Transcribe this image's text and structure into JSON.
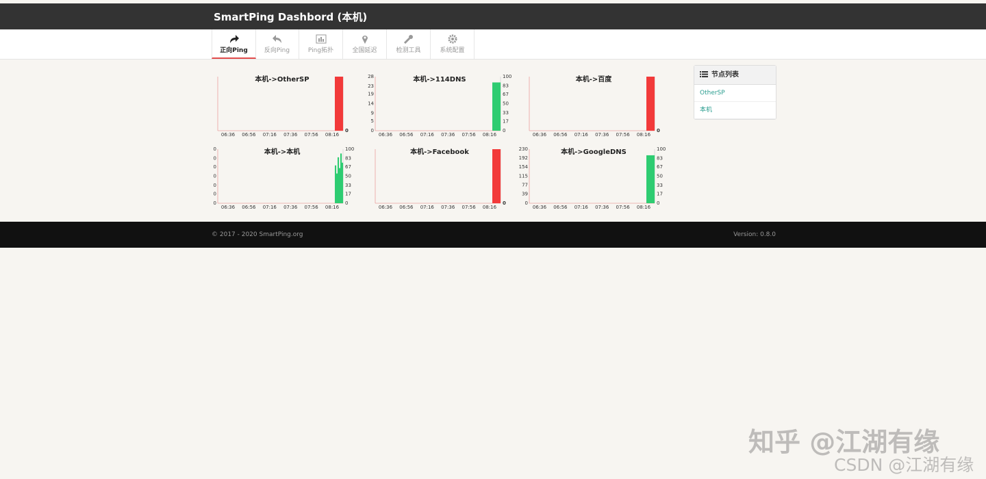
{
  "header": {
    "title": "SmartPing Dashbord (本机)"
  },
  "nav": {
    "items": [
      "正向Ping",
      "反向Ping",
      "Ping拓扑",
      "全国延迟",
      "检测工具",
      "系统配置"
    ],
    "active": 0
  },
  "charts": [
    {
      "title": "本机->OtherSP",
      "categories": [
        "06:36",
        "06:56",
        "07:16",
        "07:36",
        "07:56",
        "08:16"
      ],
      "y2lim": [
        0,
        100
      ],
      "y2ticks": [
        0
      ],
      "loss": {
        "color": "#f23a3a",
        "values": [
          100
        ]
      }
    },
    {
      "title": "本机->114DNS",
      "categories": [
        "06:36",
        "06:56",
        "07:16",
        "07:36",
        "07:56",
        "08:16"
      ],
      "ylim": [
        0,
        28
      ],
      "yticks": [
        0,
        5,
        9,
        14,
        19,
        23,
        28
      ],
      "y2lim": [
        0,
        100
      ],
      "y2ticks": [
        0,
        17,
        33,
        50,
        67,
        83,
        100
      ],
      "delay": {
        "color": "#2ecc71",
        "values": [
          25
        ]
      }
    },
    {
      "title": "本机->百度",
      "categories": [
        "06:36",
        "06:56",
        "07:16",
        "07:36",
        "07:56",
        "08:16"
      ],
      "y2lim": [
        0,
        100
      ],
      "y2ticks": [
        0
      ],
      "loss": {
        "color": "#f23a3a",
        "values": [
          100
        ]
      }
    },
    {
      "title": "本机->本机",
      "categories": [
        "06:36",
        "06:56",
        "07:16",
        "07:36",
        "07:56",
        "08:16"
      ],
      "ylim": [
        0,
        1
      ],
      "yticks": [
        {
          "value": 0,
          "label": "0"
        },
        {
          "value": 0.17,
          "label": "0"
        },
        {
          "value": 0.33,
          "label": "0"
        },
        {
          "value": 0.5,
          "label": "0"
        },
        {
          "value": 0.67,
          "label": "0"
        },
        {
          "value": 0.83,
          "label": "0"
        },
        {
          "value": 1,
          "label": "0"
        }
      ],
      "y2lim": [
        0,
        100
      ],
      "y2ticks": [
        0,
        17,
        33,
        50,
        67,
        83,
        100
      ],
      "delay": {
        "color": "#2ecc71",
        "values": [
          0.7,
          0.55,
          0.85,
          0.65,
          0.92,
          0.75
        ]
      }
    },
    {
      "title": "本机->Facebook",
      "categories": [
        "06:36",
        "06:56",
        "07:16",
        "07:36",
        "07:56",
        "08:16"
      ],
      "y2lim": [
        0,
        100
      ],
      "y2ticks": [
        0
      ],
      "loss": {
        "color": "#f23a3a",
        "values": [
          100
        ]
      }
    },
    {
      "title": "本机->GoogleDNS",
      "categories": [
        "06:36",
        "06:56",
        "07:16",
        "07:36",
        "07:56",
        "08:16"
      ],
      "ylim": [
        0,
        230
      ],
      "yticks": [
        0,
        39,
        77,
        115,
        154,
        192,
        230
      ],
      "y2lim": [
        0,
        100
      ],
      "y2ticks": [
        0,
        17,
        33,
        50,
        67,
        83,
        100
      ],
      "delay": {
        "color": "#2ecc71",
        "values": [
          204
        ]
      }
    }
  ],
  "sidebar": {
    "title": "节点列表",
    "items": [
      "OtherSP",
      "本机"
    ]
  },
  "footer": {
    "copyright": "© 2017 - 2020 SmartPing.org",
    "version": "Version: 0.8.0"
  },
  "watermark": {
    "zhihu": "知乎 @江湖有缘",
    "csdn": "CSDN @江湖有缘"
  }
}
